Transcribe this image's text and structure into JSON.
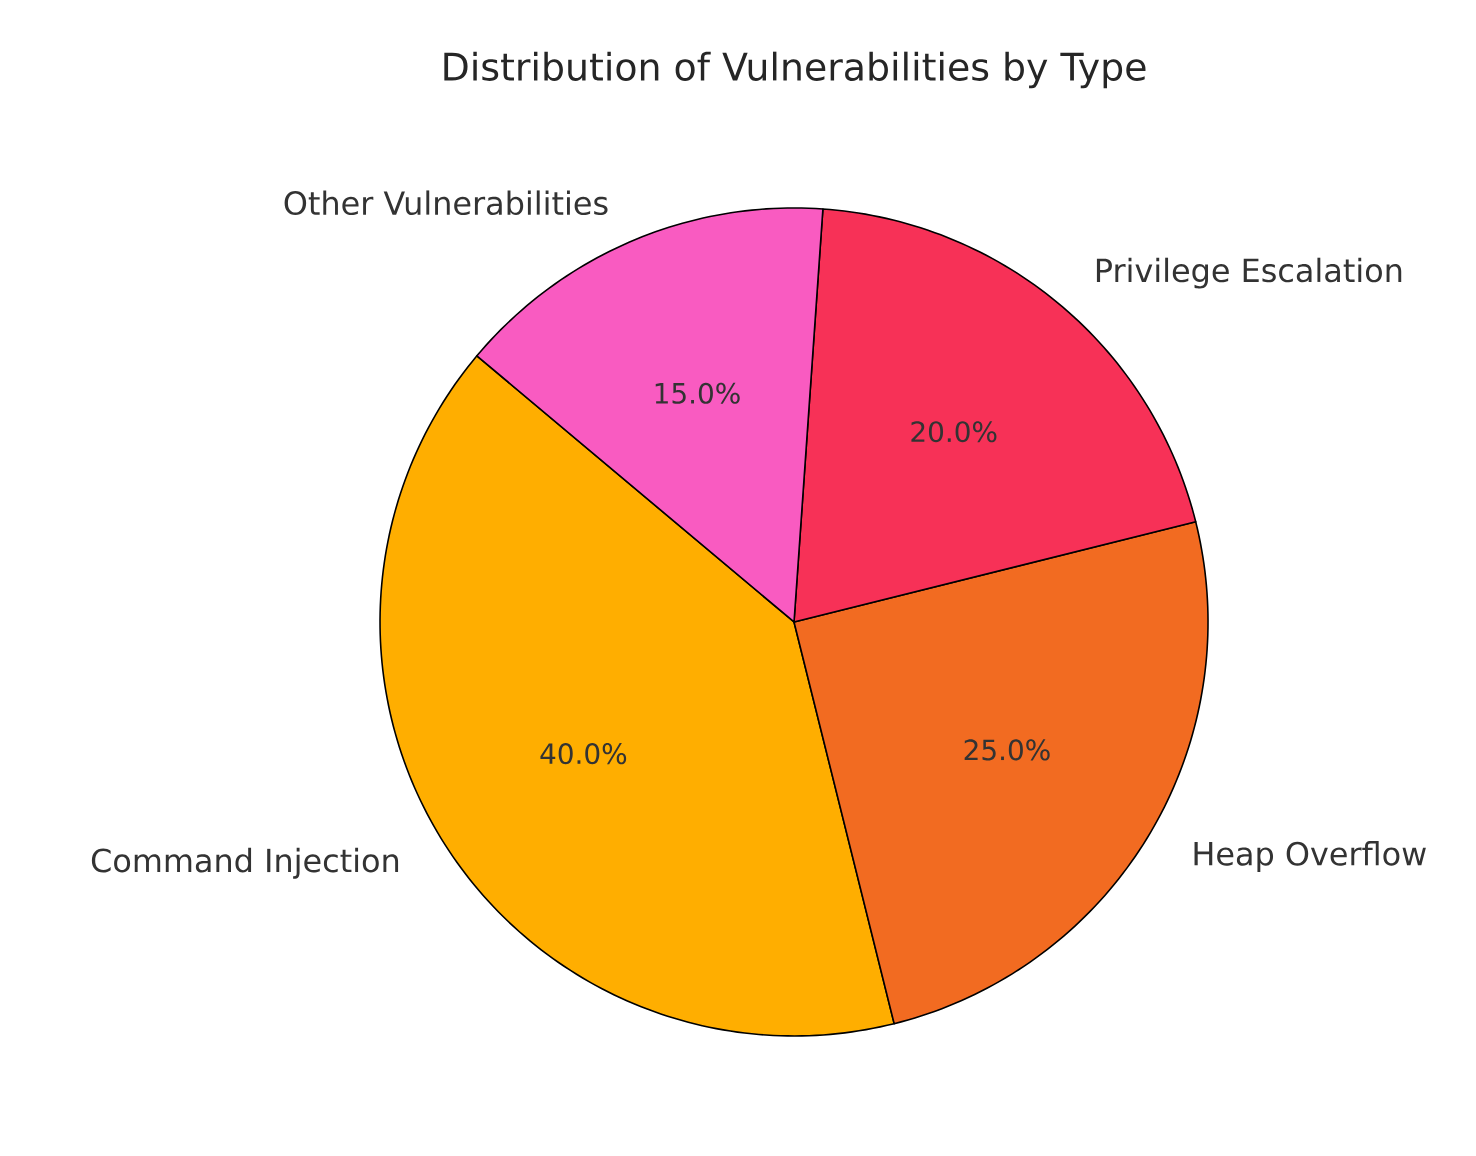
{
  "chart_data": {
    "type": "pie",
    "title": "Distribution of Vulnerabilities by Type",
    "categories": [
      "Command Injection",
      "Heap Overflow",
      "Privilege Escalation",
      "Other Vulnerabilities"
    ],
    "values": [
      40,
      25,
      20,
      15
    ],
    "colors": [
      "#ffae00",
      "#f26b21",
      "#f73157",
      "#f95bc1"
    ],
    "value_labels": [
      "40.0%",
      "25.0%",
      "20.0%",
      "15.0%"
    ]
  }
}
